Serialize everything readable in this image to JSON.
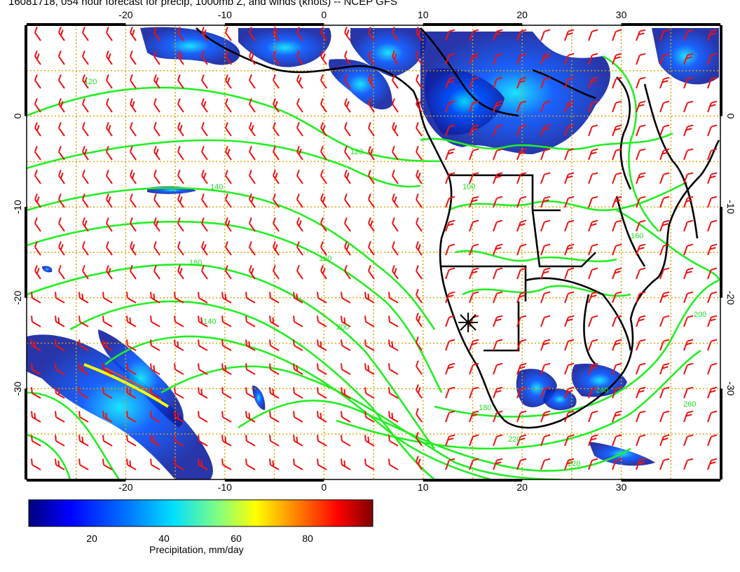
{
  "title": "16081718, 054 hour forecast for precip, 1000mb Z, and winds (knots) -- NCEP GFS",
  "axes": {
    "lon_ticks": [
      "-20",
      "-10",
      "0",
      "10",
      "20",
      "30"
    ],
    "lat_ticks": [
      "0",
      "-10",
      "-20",
      "-30"
    ]
  },
  "contour_labels": [
    "120",
    "120",
    "140",
    "140",
    "160",
    "180",
    "180",
    "200",
    "200",
    "220",
    "220",
    "240",
    "260",
    "100",
    "160"
  ],
  "colorbar": {
    "label": "Precipitation, mm/day",
    "ticks": [
      "20",
      "40",
      "60",
      "80"
    ],
    "range": [
      0,
      100
    ],
    "colors": [
      "#00007f",
      "#0000ff",
      "#0080ff",
      "#00e0ff",
      "#80ff80",
      "#ffff00",
      "#ff8000",
      "#ff0000",
      "#7f0000"
    ]
  },
  "colors": {
    "contours": "#22ee22",
    "wind_barbs": "#ee1111",
    "coastlines": "#000000",
    "gridlines": "#e0a000"
  },
  "map": {
    "lon_range": [
      -30,
      40
    ],
    "lat_range": [
      -40,
      10
    ],
    "marker": "station-cross"
  }
}
